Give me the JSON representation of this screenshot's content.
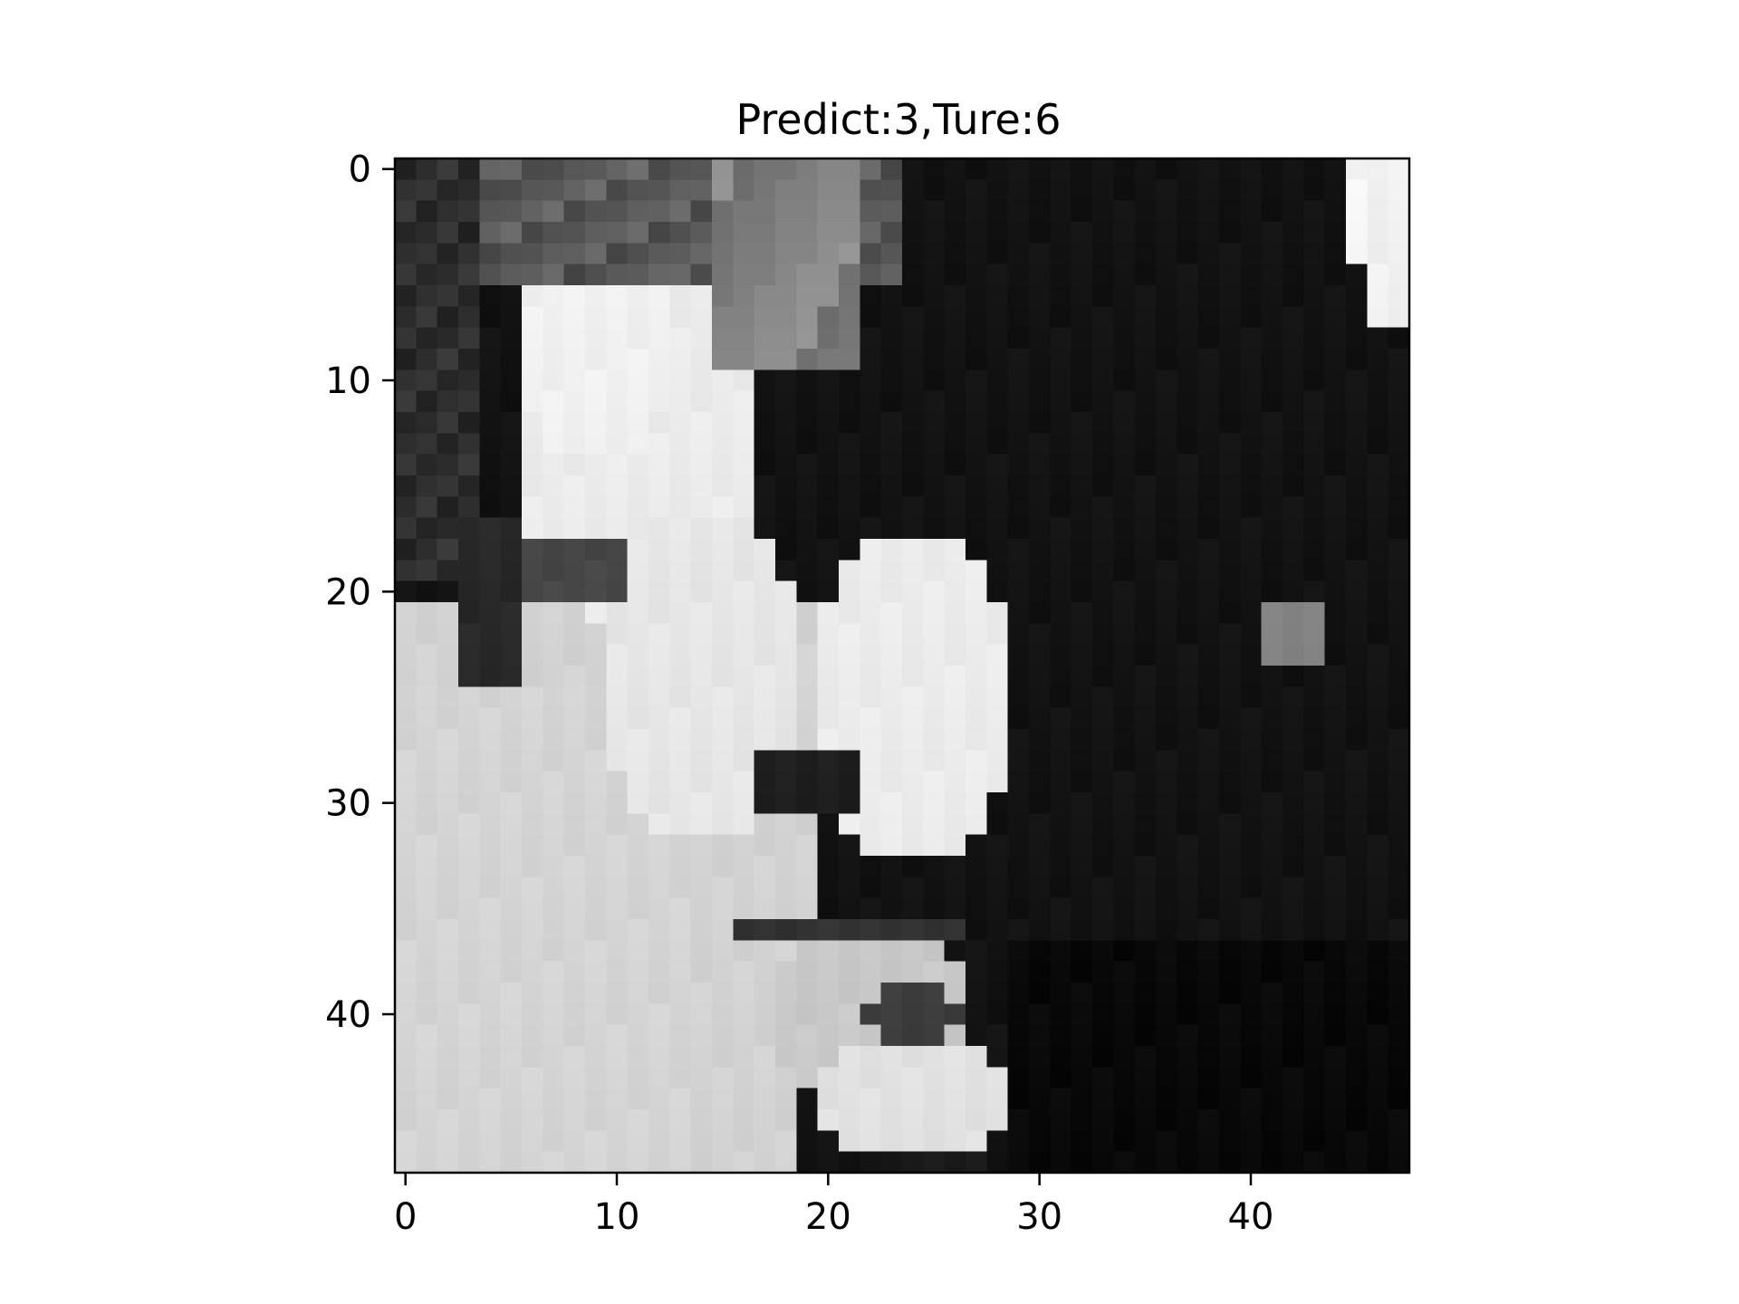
{
  "chart_data": {
    "type": "heatmap",
    "title": "Predict:3,Ture:6",
    "colormap": "gray",
    "image_size": [
      48,
      48
    ],
    "x_ticks": [
      "0",
      "10",
      "20",
      "30",
      "40"
    ],
    "y_ticks": [
      "0",
      "10",
      "20",
      "30",
      "40"
    ],
    "xlim": [
      -0.5,
      47.5
    ],
    "ylim": [
      47.5,
      -0.5
    ],
    "grid": false
  }
}
